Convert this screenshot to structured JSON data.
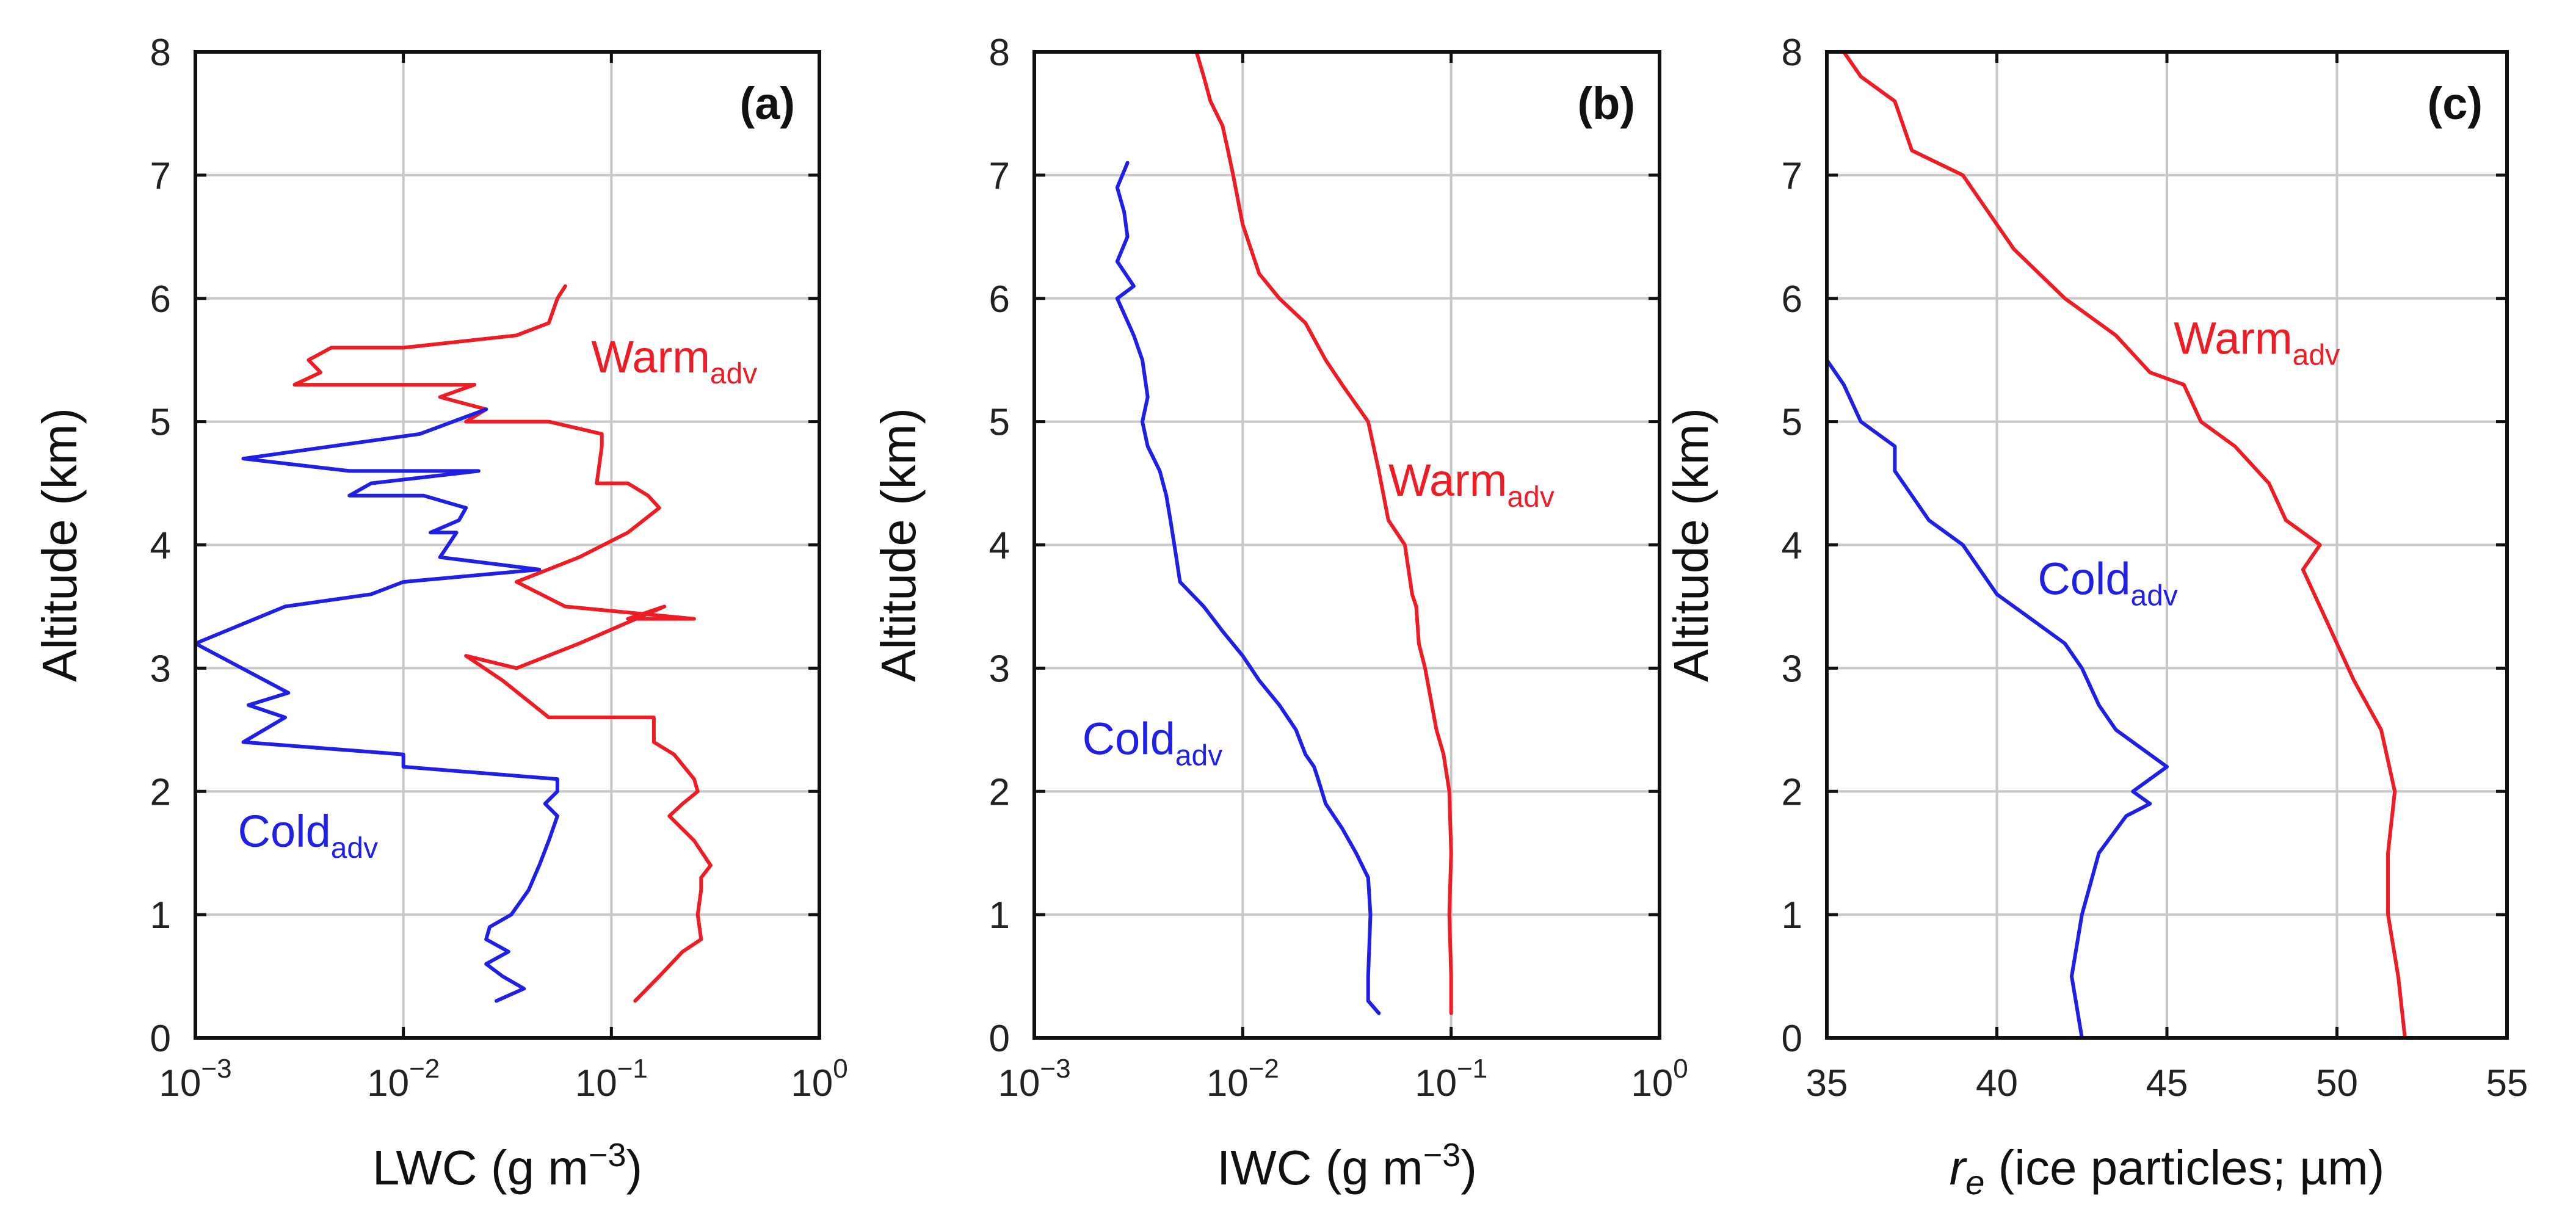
{
  "colors": {
    "warm": "#ee1c25",
    "cold": "#1f1fe6"
  },
  "chart_data": [
    {
      "type": "line",
      "panel_label": "(a)",
      "xscale": "log",
      "xlim": [
        0.001,
        1
      ],
      "ylim": [
        0,
        8
      ],
      "xticks": [
        0.001,
        0.01,
        0.1,
        1
      ],
      "xtick_labels": [
        {
          "base": "10",
          "exp": "−3"
        },
        {
          "base": "10",
          "exp": "−2"
        },
        {
          "base": "10",
          "exp": "−1"
        },
        {
          "base": "10",
          "exp": "0"
        }
      ],
      "yticks": [
        0,
        1,
        2,
        3,
        4,
        5,
        6,
        7,
        8
      ],
      "ytick_labels": [
        "0",
        "1",
        "2",
        "3",
        "4",
        "5",
        "6",
        "7",
        "8"
      ],
      "ylabel": "Altitude (km)",
      "xlabel": {
        "pre": "LWC (g m",
        "sup": "−3",
        "post": ")"
      },
      "grid": true,
      "series": [
        {
          "name": "Warm",
          "subscript": "adv",
          "color_key": "warm",
          "label_pos": [
            0.08,
            5.4
          ],
          "points": [
            [
              0.13,
              0.3
            ],
            [
              0.17,
              0.5
            ],
            [
              0.22,
              0.7
            ],
            [
              0.27,
              0.8
            ],
            [
              0.26,
              1.0
            ],
            [
              0.27,
              1.2
            ],
            [
              0.27,
              1.3
            ],
            [
              0.3,
              1.4
            ],
            [
              0.25,
              1.6
            ],
            [
              0.19,
              1.8
            ],
            [
              0.22,
              1.9
            ],
            [
              0.26,
              2.0
            ],
            [
              0.25,
              2.1
            ],
            [
              0.2,
              2.3
            ],
            [
              0.16,
              2.4
            ],
            [
              0.16,
              2.6
            ],
            [
              0.12,
              2.6
            ],
            [
              0.05,
              2.6
            ],
            [
              0.03,
              2.9
            ],
            [
              0.02,
              3.1
            ],
            [
              0.035,
              3.0
            ],
            [
              0.07,
              3.2
            ],
            [
              0.18,
              3.5
            ],
            [
              0.12,
              3.4
            ],
            [
              0.25,
              3.4
            ],
            [
              0.06,
              3.5
            ],
            [
              0.035,
              3.7
            ],
            [
              0.07,
              3.9
            ],
            [
              0.12,
              4.1
            ],
            [
              0.17,
              4.3
            ],
            [
              0.15,
              4.4
            ],
            [
              0.12,
              4.5
            ],
            [
              0.085,
              4.5
            ],
            [
              0.09,
              4.8
            ],
            [
              0.09,
              4.9
            ],
            [
              0.05,
              5.0
            ],
            [
              0.02,
              5.0
            ],
            [
              0.025,
              5.1
            ],
            [
              0.015,
              5.2
            ],
            [
              0.022,
              5.3
            ],
            [
              0.003,
              5.3
            ],
            [
              0.004,
              5.4
            ],
            [
              0.0035,
              5.5
            ],
            [
              0.0045,
              5.6
            ],
            [
              0.01,
              5.6
            ],
            [
              0.035,
              5.7
            ],
            [
              0.05,
              5.8
            ],
            [
              0.055,
              6.0
            ],
            [
              0.06,
              6.1
            ]
          ]
        },
        {
          "name": "Cold",
          "subscript": "adv",
          "color_key": "cold",
          "label_pos": [
            0.0016,
            1.55
          ],
          "points": [
            [
              0.028,
              0.3
            ],
            [
              0.038,
              0.4
            ],
            [
              0.03,
              0.5
            ],
            [
              0.025,
              0.6
            ],
            [
              0.032,
              0.7
            ],
            [
              0.025,
              0.8
            ],
            [
              0.026,
              0.9
            ],
            [
              0.033,
              1.0
            ],
            [
              0.04,
              1.2
            ],
            [
              0.045,
              1.4
            ],
            [
              0.05,
              1.6
            ],
            [
              0.055,
              1.8
            ],
            [
              0.048,
              1.9
            ],
            [
              0.055,
              2.0
            ],
            [
              0.055,
              2.1
            ],
            [
              0.01,
              2.2
            ],
            [
              0.01,
              2.3
            ],
            [
              0.0017,
              2.4
            ],
            [
              0.0027,
              2.6
            ],
            [
              0.0018,
              2.7
            ],
            [
              0.0028,
              2.8
            ],
            [
              0.001,
              3.2
            ],
            [
              0.0027,
              3.5
            ],
            [
              0.007,
              3.6
            ],
            [
              0.01,
              3.7
            ],
            [
              0.045,
              3.8
            ],
            [
              0.015,
              3.9
            ],
            [
              0.018,
              4.1
            ],
            [
              0.0135,
              4.1
            ],
            [
              0.0185,
              4.2
            ],
            [
              0.02,
              4.3
            ],
            [
              0.0125,
              4.4
            ],
            [
              0.0055,
              4.4
            ],
            [
              0.007,
              4.5
            ],
            [
              0.023,
              4.6
            ],
            [
              0.0055,
              4.6
            ],
            [
              0.0017,
              4.7
            ],
            [
              0.012,
              4.9
            ],
            [
              0.025,
              5.1
            ]
          ]
        }
      ]
    },
    {
      "type": "line",
      "panel_label": "(b)",
      "xscale": "log",
      "xlim": [
        0.001,
        1
      ],
      "ylim": [
        0,
        8
      ],
      "xticks": [
        0.001,
        0.01,
        0.1,
        1
      ],
      "xtick_labels": [
        {
          "base": "10",
          "exp": "−3"
        },
        {
          "base": "10",
          "exp": "−2"
        },
        {
          "base": "10",
          "exp": "−1"
        },
        {
          "base": "10",
          "exp": "0"
        }
      ],
      "yticks": [
        0,
        1,
        2,
        3,
        4,
        5,
        6,
        7,
        8
      ],
      "ytick_labels": [
        "0",
        "1",
        "2",
        "3",
        "4",
        "5",
        "6",
        "7",
        "8"
      ],
      "ylabel": "Altitude (km)",
      "xlabel": {
        "pre": "IWC (g m",
        "sup": "−3",
        "post": ")"
      },
      "grid": true,
      "series": [
        {
          "name": "Warm",
          "subscript": "adv",
          "color_key": "warm",
          "label_pos": [
            0.05,
            4.4
          ],
          "points": [
            [
              0.1,
              0.2
            ],
            [
              0.1,
              0.5
            ],
            [
              0.098,
              1.0
            ],
            [
              0.1,
              1.5
            ],
            [
              0.098,
              2.0
            ],
            [
              0.092,
              2.3
            ],
            [
              0.085,
              2.5
            ],
            [
              0.075,
              3.0
            ],
            [
              0.07,
              3.2
            ],
            [
              0.068,
              3.5
            ],
            [
              0.065,
              3.6
            ],
            [
              0.06,
              4.0
            ],
            [
              0.05,
              4.2
            ],
            [
              0.045,
              4.6
            ],
            [
              0.04,
              5.0
            ],
            [
              0.03,
              5.3
            ],
            [
              0.025,
              5.5
            ],
            [
              0.02,
              5.8
            ],
            [
              0.015,
              6.0
            ],
            [
              0.012,
              6.2
            ],
            [
              0.01,
              6.6
            ],
            [
              0.009,
              7.0
            ],
            [
              0.0085,
              7.2
            ],
            [
              0.008,
              7.4
            ],
            [
              0.007,
              7.6
            ],
            [
              0.0065,
              7.8
            ],
            [
              0.006,
              8.0
            ]
          ]
        },
        {
          "name": "Cold",
          "subscript": "adv",
          "color_key": "cold",
          "label_pos": [
            0.0017,
            2.3
          ],
          "points": [
            [
              0.045,
              0.2
            ],
            [
              0.04,
              0.3
            ],
            [
              0.04,
              0.5
            ],
            [
              0.041,
              1.0
            ],
            [
              0.04,
              1.3
            ],
            [
              0.035,
              1.5
            ],
            [
              0.03,
              1.7
            ],
            [
              0.025,
              1.9
            ],
            [
              0.023,
              2.1
            ],
            [
              0.022,
              2.2
            ],
            [
              0.02,
              2.3
            ],
            [
              0.018,
              2.5
            ],
            [
              0.015,
              2.7
            ],
            [
              0.012,
              2.9
            ],
            [
              0.01,
              3.1
            ],
            [
              0.008,
              3.3
            ],
            [
              0.0065,
              3.5
            ],
            [
              0.005,
              3.7
            ],
            [
              0.0048,
              3.9
            ],
            [
              0.0045,
              4.2
            ],
            [
              0.0043,
              4.4
            ],
            [
              0.004,
              4.6
            ],
            [
              0.0035,
              4.8
            ],
            [
              0.0033,
              5.0
            ],
            [
              0.0035,
              5.2
            ],
            [
              0.0033,
              5.5
            ],
            [
              0.003,
              5.7
            ],
            [
              0.0025,
              6.0
            ],
            [
              0.003,
              6.1
            ],
            [
              0.0025,
              6.3
            ],
            [
              0.0028,
              6.5
            ],
            [
              0.0027,
              6.7
            ],
            [
              0.0025,
              6.9
            ],
            [
              0.0028,
              7.1
            ]
          ]
        }
      ]
    },
    {
      "type": "line",
      "panel_label": "(c)",
      "xscale": "linear",
      "xlim": [
        35,
        55
      ],
      "ylim": [
        0,
        8
      ],
      "xticks": [
        35,
        40,
        45,
        50,
        55
      ],
      "xtick_labels": [
        {
          "base": "35"
        },
        {
          "base": "40"
        },
        {
          "base": "45"
        },
        {
          "base": "50"
        },
        {
          "base": "55"
        }
      ],
      "yticks": [
        0,
        1,
        2,
        3,
        4,
        5,
        6,
        7,
        8
      ],
      "ytick_labels": [
        "0",
        "1",
        "2",
        "3",
        "4",
        "5",
        "6",
        "7",
        "8"
      ],
      "ylabel": "Altitude (km)",
      "xlabel": {
        "italic": "r",
        "italic_sub": "e",
        "post": " (ice particles; µm)"
      },
      "grid": true,
      "series": [
        {
          "name": "Warm",
          "subscript": "adv",
          "color_key": "warm",
          "label_pos": [
            45.2,
            5.55
          ],
          "points": [
            [
              52,
              0.0
            ],
            [
              51.8,
              0.5
            ],
            [
              51.5,
              1.0
            ],
            [
              51.5,
              1.5
            ],
            [
              51.7,
              2.0
            ],
            [
              51.3,
              2.5
            ],
            [
              50.5,
              2.9
            ],
            [
              50,
              3.2
            ],
            [
              49.5,
              3.5
            ],
            [
              49,
              3.8
            ],
            [
              49.5,
              4.0
            ],
            [
              48.5,
              4.2
            ],
            [
              48,
              4.5
            ],
            [
              47,
              4.8
            ],
            [
              46,
              5.0
            ],
            [
              45.5,
              5.3
            ],
            [
              44.5,
              5.4
            ],
            [
              43.5,
              5.7
            ],
            [
              42,
              6.0
            ],
            [
              40.5,
              6.4
            ],
            [
              39,
              7.0
            ],
            [
              37.5,
              7.2
            ],
            [
              37,
              7.6
            ],
            [
              36,
              7.8
            ],
            [
              35.5,
              8.0
            ]
          ]
        },
        {
          "name": "Cold",
          "subscript": "adv",
          "color_key": "cold",
          "label_pos": [
            41.2,
            3.6
          ],
          "points": [
            [
              42.5,
              0.0
            ],
            [
              42.2,
              0.5
            ],
            [
              42.5,
              1.0
            ],
            [
              42.8,
              1.3
            ],
            [
              43,
              1.5
            ],
            [
              43.8,
              1.8
            ],
            [
              44.5,
              1.9
            ],
            [
              44,
              2.0
            ],
            [
              45,
              2.2
            ],
            [
              43.5,
              2.5
            ],
            [
              43,
              2.7
            ],
            [
              42.5,
              3.0
            ],
            [
              42,
              3.2
            ],
            [
              41,
              3.4
            ],
            [
              40,
              3.6
            ],
            [
              39,
              4.0
            ],
            [
              38,
              4.2
            ],
            [
              37.5,
              4.4
            ],
            [
              37,
              4.6
            ],
            [
              37,
              4.8
            ],
            [
              36,
              5.0
            ],
            [
              35.5,
              5.3
            ],
            [
              35,
              5.5
            ]
          ]
        }
      ]
    }
  ]
}
